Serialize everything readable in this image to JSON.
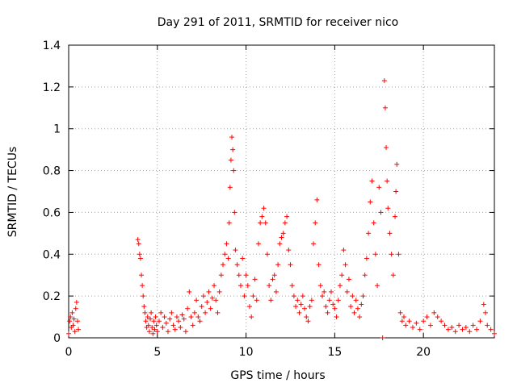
{
  "chart_data": {
    "type": "scatter",
    "title": "Day 291 of 2011, SRMTID for receiver nico",
    "xlabel": "GPS time / hours",
    "ylabel": "SRMTID / TECUs",
    "xlim": [
      0,
      24
    ],
    "ylim": [
      0,
      1.4
    ],
    "xticks": [
      0,
      5,
      10,
      15,
      20
    ],
    "yticks": [
      0,
      0.2,
      0.4,
      0.6,
      0.8,
      1,
      1.2,
      1.4
    ],
    "xtick_labels": [
      "0",
      "5",
      "10",
      "15",
      "20"
    ],
    "ytick_labels": [
      "0",
      "0.2",
      "0.4",
      "0.6",
      "0.8",
      "1",
      "1.2",
      "1.4"
    ],
    "grid": true,
    "marker": "+",
    "color": "#ff0000",
    "series": [
      {
        "name": "SRMTID",
        "points": [
          [
            0.0,
            0.02
          ],
          [
            0.05,
            0.08
          ],
          [
            0.1,
            0.1
          ],
          [
            0.15,
            0.05
          ],
          [
            0.2,
            0.12
          ],
          [
            0.25,
            0.06
          ],
          [
            0.3,
            0.09
          ],
          [
            0.35,
            0.03
          ],
          [
            0.4,
            0.14
          ],
          [
            0.45,
            0.17
          ],
          [
            0.5,
            0.08
          ],
          [
            0.55,
            0.04
          ],
          [
            3.9,
            0.47
          ],
          [
            3.95,
            0.45
          ],
          [
            4.0,
            0.4
          ],
          [
            4.05,
            0.38
          ],
          [
            4.1,
            0.3
          ],
          [
            4.15,
            0.25
          ],
          [
            4.2,
            0.2
          ],
          [
            4.25,
            0.15
          ],
          [
            4.3,
            0.12
          ],
          [
            4.35,
            0.08
          ],
          [
            4.4,
            0.05
          ],
          [
            4.45,
            0.1
          ],
          [
            4.5,
            0.06
          ],
          [
            4.55,
            0.03
          ],
          [
            4.6,
            0.09
          ],
          [
            4.65,
            0.12
          ],
          [
            4.7,
            0.05
          ],
          [
            4.75,
            0.02
          ],
          [
            4.8,
            0.08
          ],
          [
            4.85,
            0.04
          ],
          [
            4.9,
            0.1
          ],
          [
            4.95,
            0.06
          ],
          [
            5.0,
            0.03
          ],
          [
            5.1,
            0.08
          ],
          [
            5.2,
            0.12
          ],
          [
            5.3,
            0.05
          ],
          [
            5.4,
            0.1
          ],
          [
            5.5,
            0.07
          ],
          [
            5.6,
            0.03
          ],
          [
            5.7,
            0.09
          ],
          [
            5.8,
            0.12
          ],
          [
            5.9,
            0.06
          ],
          [
            6.0,
            0.04
          ],
          [
            6.1,
            0.1
          ],
          [
            6.2,
            0.08
          ],
          [
            6.3,
            0.05
          ],
          [
            6.4,
            0.11
          ],
          [
            6.5,
            0.09
          ],
          [
            6.6,
            0.03
          ],
          [
            6.7,
            0.14
          ],
          [
            6.8,
            0.22
          ],
          [
            6.9,
            0.1
          ],
          [
            7.0,
            0.06
          ],
          [
            7.1,
            0.12
          ],
          [
            7.2,
            0.18
          ],
          [
            7.3,
            0.1
          ],
          [
            7.4,
            0.08
          ],
          [
            7.5,
            0.15
          ],
          [
            7.6,
            0.2
          ],
          [
            7.7,
            0.12
          ],
          [
            7.8,
            0.17
          ],
          [
            7.9,
            0.22
          ],
          [
            8.0,
            0.14
          ],
          [
            8.1,
            0.19
          ],
          [
            8.2,
            0.25
          ],
          [
            8.3,
            0.18
          ],
          [
            8.4,
            0.12
          ],
          [
            8.5,
            0.22
          ],
          [
            8.6,
            0.3
          ],
          [
            8.7,
            0.35
          ],
          [
            8.8,
            0.4
          ],
          [
            8.9,
            0.45
          ],
          [
            9.0,
            0.38
          ],
          [
            9.05,
            0.55
          ],
          [
            9.1,
            0.72
          ],
          [
            9.15,
            0.85
          ],
          [
            9.2,
            0.96
          ],
          [
            9.25,
            0.9
          ],
          [
            9.3,
            0.8
          ],
          [
            9.35,
            0.6
          ],
          [
            9.4,
            0.42
          ],
          [
            9.5,
            0.35
          ],
          [
            9.6,
            0.3
          ],
          [
            9.7,
            0.25
          ],
          [
            9.8,
            0.38
          ],
          [
            9.9,
            0.2
          ],
          [
            10.0,
            0.3
          ],
          [
            10.1,
            0.25
          ],
          [
            10.2,
            0.15
          ],
          [
            10.3,
            0.1
          ],
          [
            10.4,
            0.2
          ],
          [
            10.5,
            0.28
          ],
          [
            10.6,
            0.18
          ],
          [
            10.7,
            0.45
          ],
          [
            10.8,
            0.55
          ],
          [
            10.9,
            0.58
          ],
          [
            11.0,
            0.62
          ],
          [
            11.1,
            0.55
          ],
          [
            11.2,
            0.4
          ],
          [
            11.3,
            0.25
          ],
          [
            11.4,
            0.18
          ],
          [
            11.5,
            0.28
          ],
          [
            11.6,
            0.3
          ],
          [
            11.7,
            0.22
          ],
          [
            11.8,
            0.35
          ],
          [
            11.9,
            0.45
          ],
          [
            12.0,
            0.48
          ],
          [
            12.1,
            0.5
          ],
          [
            12.2,
            0.55
          ],
          [
            12.3,
            0.58
          ],
          [
            12.4,
            0.42
          ],
          [
            12.5,
            0.35
          ],
          [
            12.6,
            0.25
          ],
          [
            12.7,
            0.2
          ],
          [
            12.8,
            0.15
          ],
          [
            12.9,
            0.18
          ],
          [
            13.0,
            0.12
          ],
          [
            13.1,
            0.16
          ],
          [
            13.2,
            0.2
          ],
          [
            13.3,
            0.14
          ],
          [
            13.4,
            0.1
          ],
          [
            13.5,
            0.08
          ],
          [
            13.6,
            0.15
          ],
          [
            13.7,
            0.18
          ],
          [
            13.8,
            0.45
          ],
          [
            13.9,
            0.55
          ],
          [
            14.0,
            0.66
          ],
          [
            14.1,
            0.35
          ],
          [
            14.2,
            0.25
          ],
          [
            14.3,
            0.2
          ],
          [
            14.4,
            0.22
          ],
          [
            14.5,
            0.15
          ],
          [
            14.6,
            0.12
          ],
          [
            14.7,
            0.18
          ],
          [
            14.8,
            0.22
          ],
          [
            14.9,
            0.16
          ],
          [
            15.0,
            0.14
          ],
          [
            15.1,
            0.1
          ],
          [
            15.2,
            0.18
          ],
          [
            15.3,
            0.25
          ],
          [
            15.4,
            0.3
          ],
          [
            15.5,
            0.42
          ],
          [
            15.6,
            0.35
          ],
          [
            15.7,
            0.22
          ],
          [
            15.8,
            0.28
          ],
          [
            15.9,
            0.15
          ],
          [
            16.0,
            0.2
          ],
          [
            16.1,
            0.12
          ],
          [
            16.2,
            0.18
          ],
          [
            16.3,
            0.14
          ],
          [
            16.4,
            0.1
          ],
          [
            16.5,
            0.16
          ],
          [
            16.6,
            0.2
          ],
          [
            16.7,
            0.3
          ],
          [
            16.8,
            0.38
          ],
          [
            16.9,
            0.5
          ],
          [
            17.0,
            0.65
          ],
          [
            17.1,
            0.75
          ],
          [
            17.2,
            0.55
          ],
          [
            17.3,
            0.4
          ],
          [
            17.4,
            0.25
          ],
          [
            17.5,
            0.72
          ],
          [
            17.6,
            0.6
          ],
          [
            17.7,
            0.0
          ],
          [
            17.8,
            1.23
          ],
          [
            17.85,
            1.1
          ],
          [
            17.9,
            0.91
          ],
          [
            17.95,
            0.75
          ],
          [
            18.0,
            0.62
          ],
          [
            18.1,
            0.5
          ],
          [
            18.2,
            0.4
          ],
          [
            18.3,
            0.3
          ],
          [
            18.4,
            0.58
          ],
          [
            18.45,
            0.7
          ],
          [
            18.5,
            0.83
          ],
          [
            18.6,
            0.4
          ],
          [
            18.7,
            0.12
          ],
          [
            18.8,
            0.08
          ],
          [
            18.9,
            0.1
          ],
          [
            19.0,
            0.06
          ],
          [
            19.2,
            0.08
          ],
          [
            19.4,
            0.05
          ],
          [
            19.6,
            0.07
          ],
          [
            19.8,
            0.04
          ],
          [
            20.0,
            0.08
          ],
          [
            20.2,
            0.1
          ],
          [
            20.4,
            0.06
          ],
          [
            20.6,
            0.12
          ],
          [
            20.8,
            0.1
          ],
          [
            21.0,
            0.08
          ],
          [
            21.2,
            0.06
          ],
          [
            21.4,
            0.04
          ],
          [
            21.6,
            0.05
          ],
          [
            21.8,
            0.03
          ],
          [
            22.0,
            0.06
          ],
          [
            22.2,
            0.04
          ],
          [
            22.4,
            0.05
          ],
          [
            22.6,
            0.03
          ],
          [
            22.8,
            0.06
          ],
          [
            23.0,
            0.04
          ],
          [
            23.2,
            0.08
          ],
          [
            23.4,
            0.16
          ],
          [
            23.5,
            0.12
          ],
          [
            23.6,
            0.06
          ],
          [
            23.8,
            0.04
          ],
          [
            24.0,
            0.02
          ]
        ]
      }
    ]
  }
}
